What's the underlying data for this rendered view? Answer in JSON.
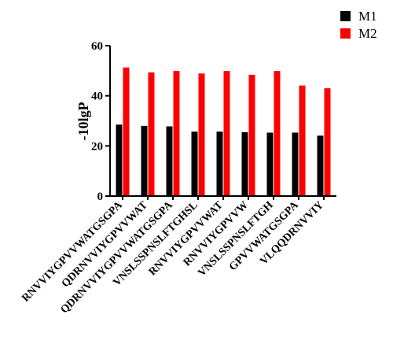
{
  "chart_data": {
    "type": "bar",
    "ylabel": "-10lgP",
    "xlabel": "",
    "ylim": [
      0,
      60
    ],
    "yticks": [
      0,
      20,
      40,
      60
    ],
    "legend_position": "top-right",
    "categories": [
      "RNVVIYGPVVWATGSGPA",
      "QDRNVVIYGPVVWAT",
      "QDRNVVIYGPVVWATGSGPA",
      "VNSLSSPNSLFTGHSL",
      "RNVVIYGPVVWAT",
      "RNVVIYGPVVW",
      "VNSLSSPNSLFTGH",
      "GPVVWATGSGPA",
      "VLQQDRNVVIY"
    ],
    "series": [
      {
        "name": "M1",
        "color": "#000000",
        "values": [
          28.5,
          28,
          27.8,
          25.7,
          25.7,
          25.5,
          25.3,
          25.3,
          24.1
        ]
      },
      {
        "name": "M2",
        "color": "#ff0000",
        "values": [
          51.3,
          49.3,
          49.9,
          48.9,
          49.9,
          48.4,
          49.9,
          44.1,
          43.0
        ]
      }
    ]
  }
}
